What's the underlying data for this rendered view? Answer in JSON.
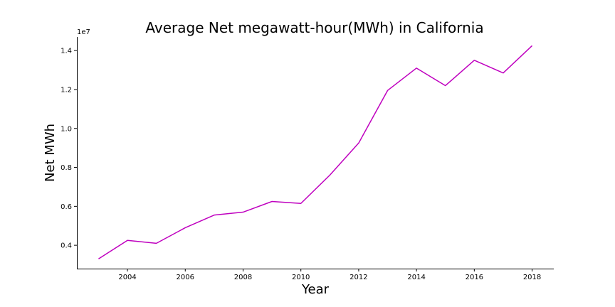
{
  "chart_data": {
    "type": "line",
    "title": "Average Net megawatt-hour(MWh) in California",
    "xlabel": "Year",
    "ylabel": "Net MWh",
    "y_offset_label": "1e7",
    "y_scale": 10000000,
    "xlim": [
      2002.25,
      2018.75
    ],
    "ylim": [
      2800000,
      14700000
    ],
    "xticks": [
      2004,
      2006,
      2008,
      2010,
      2012,
      2014,
      2016,
      2018
    ],
    "yticks": [
      4000000,
      6000000,
      8000000,
      10000000,
      12000000,
      14000000
    ],
    "ytick_labels": [
      "0.4",
      "0.6",
      "0.8",
      "1.0",
      "1.2",
      "1.4"
    ],
    "line_color": "#bf00bf",
    "grid": false,
    "series": [
      {
        "x": [
          2003,
          2004,
          2005,
          2006,
          2007,
          2008,
          2009,
          2010,
          2011,
          2012,
          2013,
          2014,
          2015,
          2016,
          2017,
          2018
        ],
        "values": [
          3300000,
          4250000,
          4100000,
          4900000,
          5550000,
          5700000,
          6250000,
          6150000,
          7600000,
          9250000,
          11950000,
          13100000,
          12200000,
          13500000,
          12850000,
          14250000
        ]
      }
    ]
  }
}
